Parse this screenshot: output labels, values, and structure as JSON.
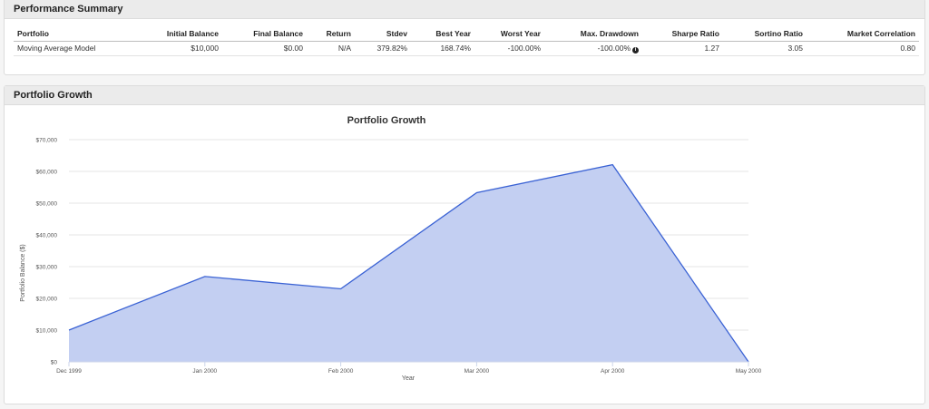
{
  "summary": {
    "heading": "Performance Summary",
    "columns": [
      "Portfolio",
      "Initial Balance",
      "Final Balance",
      "Return",
      "Stdev",
      "Best Year",
      "Worst Year",
      "Max. Drawdown",
      "Sharpe Ratio",
      "Sortino Ratio",
      "Market Correlation"
    ],
    "rows": [
      {
        "portfolio": "Moving Average Model",
        "initial_balance": "$10,000",
        "final_balance": "$0.00",
        "return": "N/A",
        "stdev": "379.82%",
        "best_year": "168.74%",
        "worst_year": "-100.00%",
        "max_drawdown": "-100.00%",
        "info_icon": "info-circle-icon",
        "sharpe_ratio": "1.27",
        "sortino_ratio": "3.05",
        "market_correlation": "0.80"
      }
    ]
  },
  "growth": {
    "heading": "Portfolio Growth"
  },
  "chart_data": {
    "type": "area",
    "title": "Portfolio Growth",
    "xlabel": "Year",
    "ylabel": "Portfolio Balance ($)",
    "categories": [
      "Dec 1999",
      "Jan 2000",
      "Feb 2000",
      "Mar 2000",
      "Apr 2000",
      "May 2000"
    ],
    "values": [
      10000,
      26900,
      23000,
      53300,
      62100,
      0
    ],
    "yticks": [
      "$0",
      "$10,000",
      "$20,000",
      "$30,000",
      "$40,000",
      "$50,000",
      "$60,000",
      "$70,000"
    ],
    "ylim": [
      0,
      70000
    ],
    "grid": true,
    "line_color": "#3a62d4",
    "fill_color": "#c3cff2"
  }
}
